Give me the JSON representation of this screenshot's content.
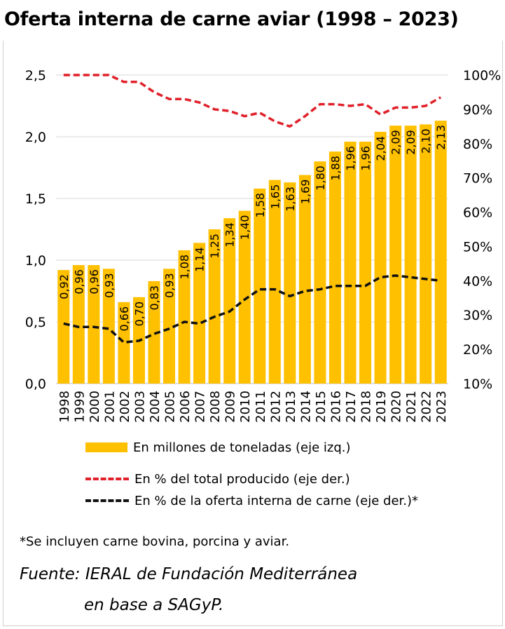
{
  "title": "Oferta interna de carne aviar (1998 – 2023)",
  "chart_data": {
    "type": "bar",
    "title": "Oferta interna de carne aviar (1998 – 2023)",
    "categories": [
      "1998",
      "1999",
      "2000",
      "2001",
      "2002",
      "2003",
      "2004",
      "2005",
      "2006",
      "2007",
      "2008",
      "2009",
      "2010",
      "2011",
      "2012",
      "2013",
      "2014",
      "2015",
      "2016",
      "2017",
      "2018",
      "2019",
      "2020",
      "2021",
      "2022",
      "2023"
    ],
    "bar_series": {
      "name": "En millones de toneladas (eje izq.)",
      "color": "#FFC000",
      "values": [
        0.92,
        0.96,
        0.96,
        0.93,
        0.66,
        0.7,
        0.83,
        0.93,
        1.08,
        1.14,
        1.25,
        1.34,
        1.4,
        1.58,
        1.65,
        1.63,
        1.69,
        1.8,
        1.88,
        1.96,
        1.96,
        2.04,
        2.09,
        2.09,
        2.1,
        2.13
      ],
      "labels": [
        "0,92",
        "0,96",
        "0,96",
        "0,93",
        "0,66",
        "0,70",
        "0,83",
        "0,93",
        "1,08",
        "1,14",
        "1,25",
        "1,34",
        "1,40",
        "1,58",
        "1,65",
        "1,63",
        "1,69",
        "1,80",
        "1,88",
        "1,96",
        "1,96",
        "2,04",
        "2,09",
        "2,09",
        "2,10",
        "2,13"
      ]
    },
    "line_series": [
      {
        "name": "En % del total producido (eje der.)",
        "color": "#E0202A",
        "axis": "right",
        "values": [
          100,
          100,
          100,
          100,
          98,
          98,
          95,
          93,
          93,
          92,
          90,
          89.5,
          88,
          89,
          86.5,
          85,
          88,
          91.5,
          91.5,
          91,
          91.5,
          88.5,
          90.5,
          90.5,
          91,
          93.5
        ]
      },
      {
        "name": "En % de la oferta interna de carne (eje der.)*",
        "color": "#111111",
        "axis": "right",
        "values": [
          27.5,
          26.5,
          26.5,
          26,
          22,
          22.5,
          24.5,
          26,
          28,
          27.5,
          29.5,
          31,
          34.5,
          37.5,
          37.5,
          35.5,
          37,
          37.5,
          38.5,
          38.5,
          38.5,
          41,
          41.5,
          41,
          40.5,
          40
        ]
      }
    ],
    "y_left": {
      "min": 0,
      "max": 2.5,
      "ticks": [
        0,
        0.5,
        1.0,
        1.5,
        2.0,
        2.5
      ],
      "tick_labels": [
        "0,0",
        "0,5",
        "1,0",
        "1,5",
        "2,0",
        "2,5"
      ]
    },
    "y_right": {
      "min": 10,
      "max": 100,
      "ticks": [
        10,
        20,
        30,
        40,
        50,
        60,
        70,
        80,
        90,
        100
      ],
      "tick_labels": [
        "10%",
        "20%",
        "30%",
        "40%",
        "50%",
        "60%",
        "70%",
        "80%",
        "90%",
        "100%"
      ]
    },
    "grid": true
  },
  "legend": {
    "bars": "En millones de toneladas (eje izq.)",
    "line_red": "En % del total producido (eje der.)",
    "line_black": "En % de la oferta interna de carne (eje der.)*"
  },
  "footnote": "*Se incluyen carne bovina, porcina y aviar.",
  "source_line1": "Fuente: IERAL de Fundación Mediterránea",
  "source_line2": "en base a SAGyP."
}
